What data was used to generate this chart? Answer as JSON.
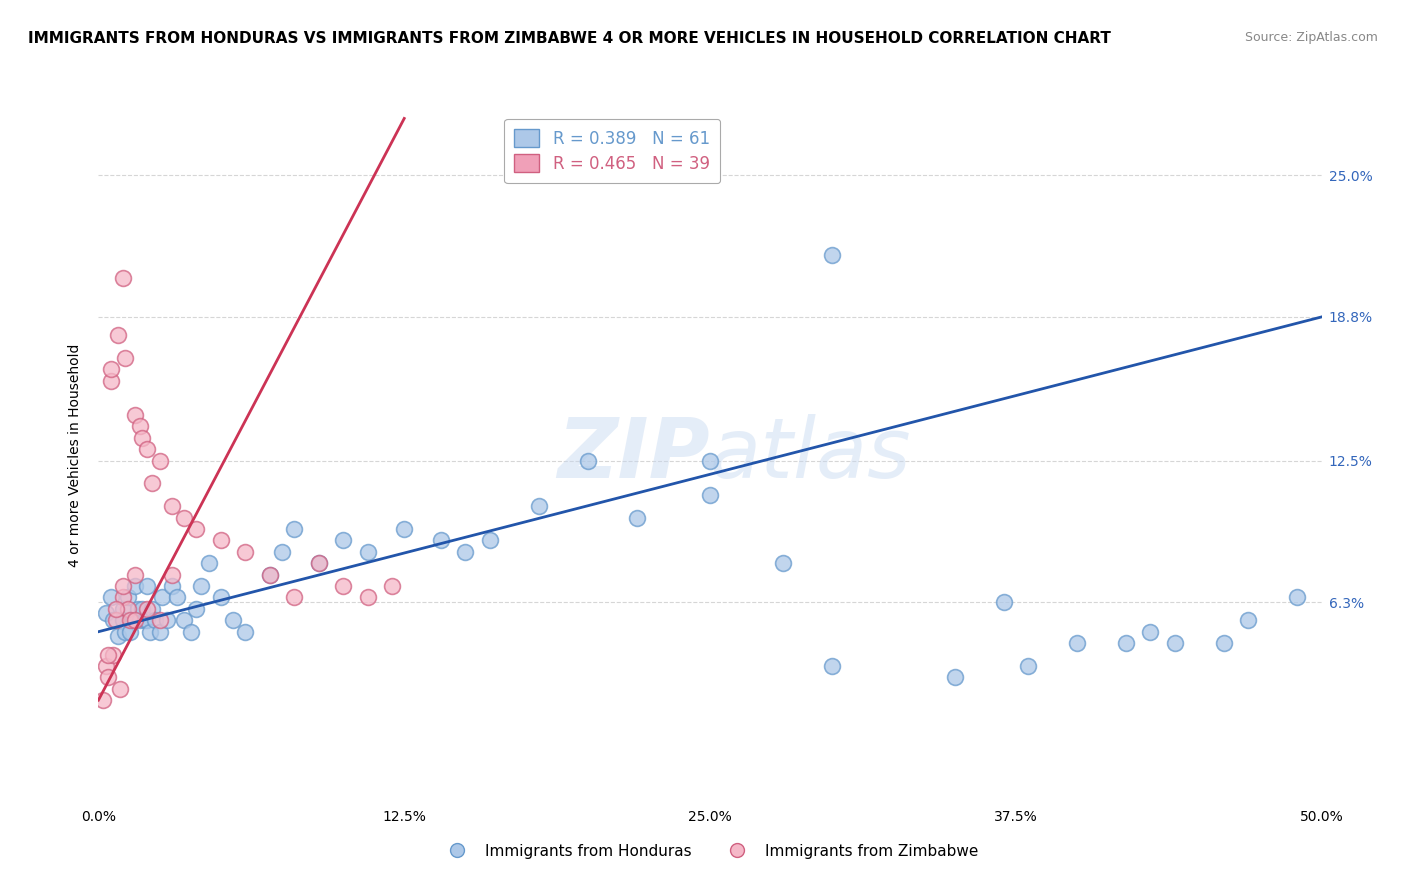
{
  "title": "IMMIGRANTS FROM HONDURAS VS IMMIGRANTS FROM ZIMBABWE 4 OR MORE VEHICLES IN HOUSEHOLD CORRELATION CHART",
  "source": "Source: ZipAtlas.com",
  "ylabel": "4 or more Vehicles in Household",
  "xlim": [
    0.0,
    50.0
  ],
  "ylim": [
    -2.5,
    28.0
  ],
  "yticks": [
    0.0,
    6.3,
    12.5,
    18.8,
    25.0
  ],
  "ytick_labels": [
    "",
    "6.3%",
    "12.5%",
    "18.8%",
    "25.0%"
  ],
  "xtick_labels": [
    "0.0%",
    "12.5%",
    "25.0%",
    "37.5%",
    "50.0%"
  ],
  "xticks": [
    0.0,
    12.5,
    25.0,
    37.5,
    50.0
  ],
  "watermark": "ZIPatlas",
  "legend_entries": [
    {
      "label": "R = 0.389   N = 61",
      "color": "#adc8e8"
    },
    {
      "label": "R = 0.465   N = 39",
      "color": "#f0a0b8"
    }
  ],
  "legend_labels": [
    "Immigrants from Honduras",
    "Immigrants from Zimbabwe"
  ],
  "honduras_color": "#adc8e8",
  "honduras_edge_color": "#6699cc",
  "zimbabwe_color": "#f5b8c8",
  "zimbabwe_edge_color": "#d06080",
  "honduras_line_color": "#2255aa",
  "zimbabwe_line_color": "#cc3355",
  "honduras_scatter_x": [
    0.3,
    0.5,
    0.6,
    0.8,
    1.0,
    1.0,
    1.1,
    1.2,
    1.3,
    1.4,
    1.5,
    1.6,
    1.7,
    1.8,
    1.9,
    2.0,
    2.0,
    2.1,
    2.2,
    2.3,
    2.5,
    2.6,
    2.8,
    3.0,
    3.2,
    3.5,
    3.8,
    4.0,
    4.2,
    4.5,
    5.0,
    5.5,
    6.0,
    7.0,
    7.5,
    8.0,
    9.0,
    10.0,
    11.0,
    12.5,
    14.0,
    15.0,
    16.0,
    18.0,
    20.0,
    22.0,
    25.0,
    28.0,
    30.0,
    35.0,
    38.0,
    40.0,
    42.0,
    43.0,
    44.0,
    46.0,
    47.0,
    49.0,
    25.0,
    30.0,
    37.0
  ],
  "honduras_scatter_y": [
    5.8,
    6.5,
    5.5,
    4.8,
    6.0,
    5.5,
    5.0,
    6.5,
    5.0,
    5.5,
    7.0,
    6.0,
    5.5,
    6.0,
    5.5,
    5.5,
    7.0,
    5.0,
    6.0,
    5.5,
    5.0,
    6.5,
    5.5,
    7.0,
    6.5,
    5.5,
    5.0,
    6.0,
    7.0,
    8.0,
    6.5,
    5.5,
    5.0,
    7.5,
    8.5,
    9.5,
    8.0,
    9.0,
    8.5,
    9.5,
    9.0,
    8.5,
    9.0,
    10.5,
    12.5,
    10.0,
    11.0,
    8.0,
    3.5,
    3.0,
    3.5,
    4.5,
    4.5,
    5.0,
    4.5,
    4.5,
    5.5,
    6.5,
    12.5,
    21.5,
    6.3
  ],
  "zimbabwe_scatter_x": [
    0.2,
    0.3,
    0.4,
    0.5,
    0.6,
    0.7,
    0.8,
    0.9,
    1.0,
    1.0,
    1.1,
    1.2,
    1.3,
    1.5,
    1.5,
    1.7,
    1.8,
    2.0,
    2.2,
    2.5,
    3.0,
    3.5,
    4.0,
    5.0,
    6.0,
    7.0,
    8.0,
    9.0,
    10.0,
    11.0,
    12.0,
    0.5,
    1.0,
    1.5,
    2.0,
    2.5,
    3.0,
    0.4,
    0.7
  ],
  "zimbabwe_scatter_y": [
    2.0,
    3.5,
    3.0,
    16.0,
    4.0,
    5.5,
    18.0,
    2.5,
    20.5,
    6.5,
    17.0,
    6.0,
    5.5,
    14.5,
    7.5,
    14.0,
    13.5,
    13.0,
    11.5,
    12.5,
    10.5,
    10.0,
    9.5,
    9.0,
    8.5,
    7.5,
    6.5,
    8.0,
    7.0,
    6.5,
    7.0,
    16.5,
    7.0,
    5.5,
    6.0,
    5.5,
    7.5,
    4.0,
    6.0
  ],
  "honduras_trend_x": [
    0.0,
    50.0
  ],
  "honduras_trend_y": [
    5.0,
    18.8
  ],
  "zimbabwe_trend_x": [
    0.0,
    12.5
  ],
  "zimbabwe_trend_y": [
    2.0,
    27.5
  ],
  "background_color": "#ffffff",
  "grid_color": "#cccccc",
  "title_fontsize": 11,
  "axis_label_fontsize": 10,
  "tick_fontsize": 10,
  "right_tick_color": "#3366bb"
}
